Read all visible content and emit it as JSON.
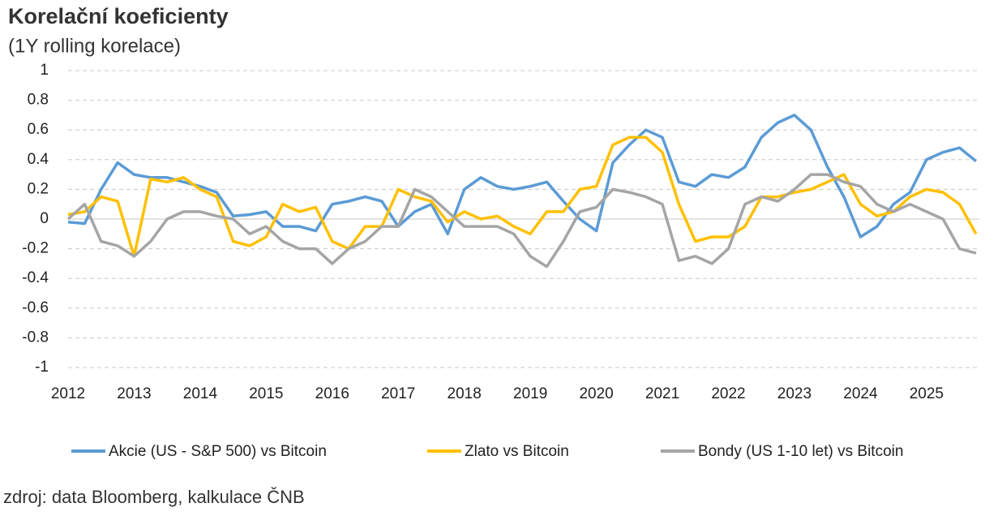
{
  "chart_data": {
    "type": "line",
    "title": "Korelační koeficienty",
    "subtitle": "(1Y rolling korelace)",
    "source": "zdroj: data Bloomberg, kalkulace ČNB",
    "x": [
      2012,
      2012.25,
      2012.5,
      2012.75,
      2013,
      2013.25,
      2013.5,
      2013.75,
      2014,
      2014.25,
      2014.5,
      2014.75,
      2015,
      2015.25,
      2015.5,
      2015.75,
      2016,
      2016.25,
      2016.5,
      2016.75,
      2017,
      2017.25,
      2017.5,
      2017.75,
      2018,
      2018.25,
      2018.5,
      2018.75,
      2019,
      2019.25,
      2019.5,
      2019.75,
      2020,
      2020.25,
      2020.5,
      2020.75,
      2021,
      2021.25,
      2021.5,
      2021.75,
      2022,
      2022.25,
      2022.5,
      2022.75,
      2023,
      2023.25,
      2023.5,
      2023.75,
      2024,
      2024.25,
      2024.5,
      2024.75,
      2025,
      2025.25,
      2025.5,
      2025.75
    ],
    "series": [
      {
        "name": "Akcie (US - S&P 500) vs Bitcoin",
        "color": "#5b9bd5",
        "values": [
          -0.02,
          -0.03,
          0.2,
          0.38,
          0.3,
          0.28,
          0.28,
          0.25,
          0.22,
          0.18,
          0.02,
          0.03,
          0.05,
          -0.05,
          -0.05,
          -0.08,
          0.1,
          0.12,
          0.15,
          0.12,
          -0.05,
          0.05,
          0.1,
          -0.1,
          0.2,
          0.28,
          0.22,
          0.2,
          0.22,
          0.25,
          0.12,
          0.0,
          -0.08,
          0.38,
          0.5,
          0.6,
          0.55,
          0.25,
          0.22,
          0.3,
          0.28,
          0.35,
          0.55,
          0.65,
          0.7,
          0.6,
          0.35,
          0.15,
          -0.12,
          -0.05,
          0.1,
          0.18,
          0.4,
          0.45,
          0.48,
          0.39
        ]
      },
      {
        "name": "Zlato vs Bitcoin",
        "color": "#ffc000",
        "values": [
          0.03,
          0.05,
          0.15,
          0.12,
          -0.25,
          0.27,
          0.25,
          0.28,
          0.2,
          0.15,
          -0.15,
          -0.18,
          -0.12,
          0.1,
          0.05,
          0.08,
          -0.15,
          -0.2,
          -0.05,
          -0.05,
          0.2,
          0.15,
          0.12,
          -0.02,
          0.05,
          0.0,
          0.02,
          -0.05,
          -0.1,
          0.05,
          0.05,
          0.2,
          0.22,
          0.5,
          0.55,
          0.55,
          0.45,
          0.1,
          -0.15,
          -0.12,
          -0.12,
          -0.05,
          0.15,
          0.15,
          0.18,
          0.2,
          0.25,
          0.3,
          0.1,
          0.02,
          0.05,
          0.15,
          0.2,
          0.18,
          0.1,
          -0.1
        ]
      },
      {
        "name": "Bondy (US 1-10 let) vs Bitcoin",
        "color": "#a5a5a5",
        "values": [
          0.0,
          0.1,
          -0.15,
          -0.18,
          -0.25,
          -0.15,
          0.0,
          0.05,
          0.05,
          0.02,
          0.0,
          -0.1,
          -0.05,
          -0.15,
          -0.2,
          -0.2,
          -0.3,
          -0.2,
          -0.15,
          -0.05,
          -0.05,
          0.2,
          0.15,
          0.05,
          -0.05,
          -0.05,
          -0.05,
          -0.1,
          -0.25,
          -0.32,
          -0.15,
          0.05,
          0.08,
          0.2,
          0.18,
          0.15,
          0.1,
          -0.28,
          -0.25,
          -0.3,
          -0.2,
          0.1,
          0.15,
          0.12,
          0.2,
          0.3,
          0.3,
          0.25,
          0.22,
          0.1,
          0.05,
          0.1,
          0.05,
          0.0,
          -0.2,
          -0.23
        ]
      }
    ],
    "xlim": [
      2012,
      2025.8
    ],
    "xticks": [
      2012,
      2013,
      2014,
      2015,
      2016,
      2017,
      2018,
      2019,
      2020,
      2021,
      2022,
      2023,
      2024,
      2025
    ],
    "ylim": [
      -1,
      1
    ],
    "yticks": [
      -1,
      -0.8,
      -0.6,
      -0.4,
      -0.2,
      0,
      0.2,
      0.4,
      0.6,
      0.8,
      1
    ],
    "grid": true
  }
}
